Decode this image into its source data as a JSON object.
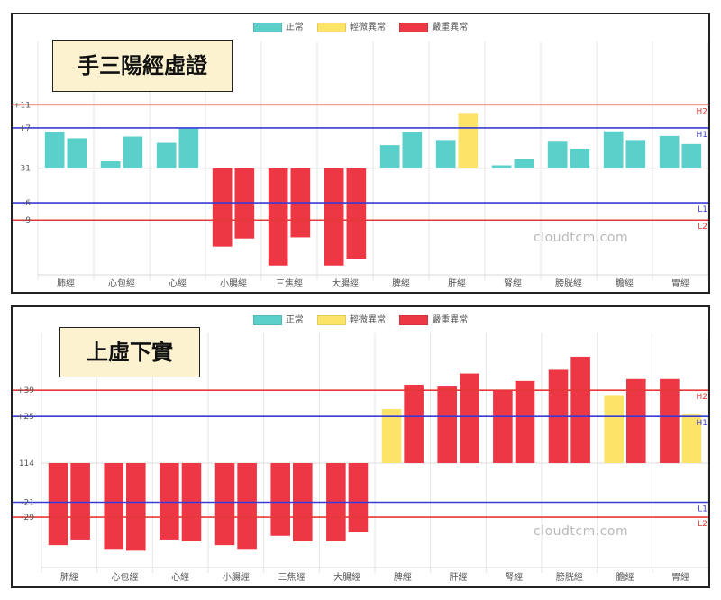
{
  "legend": {
    "normal": "正常",
    "mild": "輕微異常",
    "severe": "嚴重異常"
  },
  "colors": {
    "normal": "#5bcfc9",
    "mild": "#fce469",
    "severe": "#ed3745",
    "blue_line": "#3a3ad8",
    "red_line": "#e53838",
    "grid": "#e6e6e6"
  },
  "watermark": "cloudtcm.com",
  "chart_data": [
    {
      "type": "bar",
      "title": "手三陽經虛證",
      "categories": [
        "肺經",
        "心包經",
        "心經",
        "小腸經",
        "三焦經",
        "大腸經",
        "脾經",
        "肝經",
        "腎經",
        "膀胱經",
        "膽經",
        "胃經"
      ],
      "baseline_label": "31",
      "y_ticks": [
        {
          "label": "+11",
          "value": 11
        },
        {
          "label": "+7",
          "value": 7
        },
        {
          "label": "31",
          "value": 0
        },
        {
          "label": "-6",
          "value": -6
        },
        {
          "label": "-9",
          "value": -9
        }
      ],
      "ylim": [
        -18.5,
        22
      ],
      "reference_lines": [
        {
          "label": "H2",
          "value": 11,
          "color": "red"
        },
        {
          "label": "H1",
          "value": 7,
          "color": "blue"
        },
        {
          "label": "L1",
          "value": -6,
          "color": "blue"
        },
        {
          "label": "L2",
          "value": -9,
          "color": "red"
        }
      ],
      "bars": [
        [
          {
            "value": 6.3,
            "status": "normal"
          },
          {
            "value": 5.2,
            "status": "normal"
          }
        ],
        [
          {
            "value": 1.2,
            "status": "normal"
          },
          {
            "value": 5.5,
            "status": "normal"
          }
        ],
        [
          {
            "value": 4.4,
            "status": "normal"
          },
          {
            "value": 7.0,
            "status": "normal"
          }
        ],
        [
          {
            "value": -13.6,
            "status": "severe"
          },
          {
            "value": -12.2,
            "status": "severe"
          }
        ],
        [
          {
            "value": -16.9,
            "status": "severe"
          },
          {
            "value": -12.0,
            "status": "severe"
          }
        ],
        [
          {
            "value": -16.9,
            "status": "severe"
          },
          {
            "value": -15.7,
            "status": "severe"
          }
        ],
        [
          {
            "value": 4.0,
            "status": "normal"
          },
          {
            "value": 6.3,
            "status": "normal"
          }
        ],
        [
          {
            "value": 4.9,
            "status": "normal"
          },
          {
            "value": 9.6,
            "status": "mild"
          }
        ],
        [
          {
            "value": 0.5,
            "status": "normal"
          },
          {
            "value": 1.6,
            "status": "normal"
          }
        ],
        [
          {
            "value": 4.6,
            "status": "normal"
          },
          {
            "value": 3.4,
            "status": "normal"
          }
        ],
        [
          {
            "value": 6.4,
            "status": "normal"
          },
          {
            "value": 4.9,
            "status": "normal"
          }
        ],
        [
          {
            "value": 5.6,
            "status": "normal"
          },
          {
            "value": 4.2,
            "status": "normal"
          }
        ]
      ]
    },
    {
      "type": "bar",
      "title": "上虛下實",
      "categories": [
        "肺經",
        "心包經",
        "心經",
        "小腸經",
        "三焦經",
        "大腸經",
        "脾經",
        "肝經",
        "腎經",
        "膀胱經",
        "膽經",
        "胃經"
      ],
      "baseline_label": "114",
      "y_ticks": [
        {
          "label": "+39",
          "value": 39
        },
        {
          "label": "+25",
          "value": 25
        },
        {
          "label": "114",
          "value": 0
        },
        {
          "label": "-21",
          "value": -21
        },
        {
          "label": "-29",
          "value": -29
        }
      ],
      "ylim": [
        -56,
        70
      ],
      "reference_lines": [
        {
          "label": "H2",
          "value": 39,
          "color": "red"
        },
        {
          "label": "H1",
          "value": 25,
          "color": "blue"
        },
        {
          "label": "L1",
          "value": -21,
          "color": "blue"
        },
        {
          "label": "L2",
          "value": -29,
          "color": "red"
        }
      ],
      "bars": [
        [
          {
            "value": -44,
            "status": "severe"
          },
          {
            "value": -41,
            "status": "severe"
          }
        ],
        [
          {
            "value": -46,
            "status": "severe"
          },
          {
            "value": -47,
            "status": "severe"
          }
        ],
        [
          {
            "value": -41,
            "status": "severe"
          },
          {
            "value": -42,
            "status": "severe"
          }
        ],
        [
          {
            "value": -44,
            "status": "severe"
          },
          {
            "value": -46,
            "status": "severe"
          }
        ],
        [
          {
            "value": -39,
            "status": "severe"
          },
          {
            "value": -42,
            "status": "severe"
          }
        ],
        [
          {
            "value": -42,
            "status": "severe"
          },
          {
            "value": -37,
            "status": "severe"
          }
        ],
        [
          {
            "value": 29,
            "status": "mild"
          },
          {
            "value": 42,
            "status": "severe"
          }
        ],
        [
          {
            "value": 41,
            "status": "severe"
          },
          {
            "value": 48,
            "status": "severe"
          }
        ],
        [
          {
            "value": 39,
            "status": "severe"
          },
          {
            "value": 44,
            "status": "severe"
          }
        ],
        [
          {
            "value": 50,
            "status": "severe"
          },
          {
            "value": 57,
            "status": "severe"
          }
        ],
        [
          {
            "value": 36,
            "status": "mild"
          },
          {
            "value": 45,
            "status": "severe"
          }
        ],
        [
          {
            "value": 45,
            "status": "severe"
          },
          {
            "value": 26,
            "status": "mild"
          }
        ]
      ]
    }
  ]
}
